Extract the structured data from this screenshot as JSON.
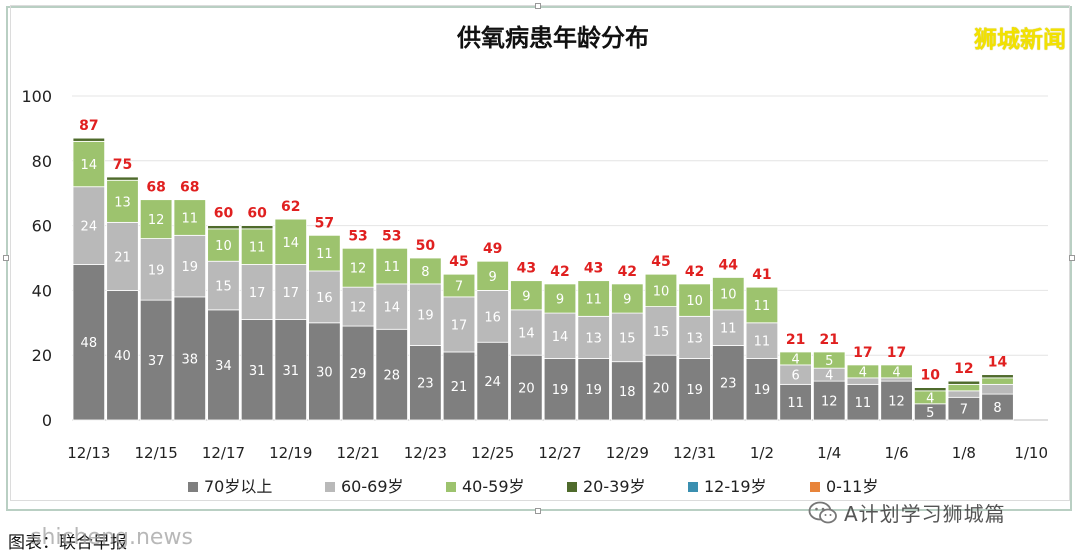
{
  "chart_data": {
    "type": "bar",
    "stacked": true,
    "title": "供氧病患年龄分布",
    "categories": [
      "12/13",
      "12/14",
      "12/15",
      "12/16",
      "12/17",
      "12/18",
      "12/19",
      "12/20",
      "12/21",
      "12/22",
      "12/23",
      "12/24",
      "12/25",
      "12/26",
      "12/27",
      "12/28",
      "12/29",
      "12/30",
      "12/31",
      "1/1",
      "1/2",
      "1/3",
      "1/4",
      "1/5",
      "1/6",
      "1/7",
      "1/8",
      "1/9",
      "1/10"
    ],
    "x_tick_labels": [
      "12/13",
      "12/15",
      "12/17",
      "12/19",
      "12/21",
      "12/23",
      "12/25",
      "12/27",
      "12/29",
      "12/31",
      "1/2",
      "1/4",
      "1/6",
      "1/8",
      "1/10"
    ],
    "ylim": [
      0,
      100
    ],
    "yticks": [
      0,
      20,
      40,
      60,
      80,
      100
    ],
    "grid": true,
    "legend_position": "bottom",
    "series": [
      {
        "name": "70岁以上",
        "color": "#7f7f7f",
        "values": [
          48,
          40,
          37,
          38,
          34,
          31,
          31,
          30,
          29,
          28,
          23,
          21,
          24,
          20,
          19,
          19,
          18,
          20,
          19,
          23,
          19,
          11,
          12,
          11,
          12,
          5,
          7,
          8,
          null
        ]
      },
      {
        "name": "60-69岁",
        "color": "#b9b9b9",
        "values": [
          24,
          21,
          19,
          19,
          15,
          17,
          17,
          16,
          12,
          14,
          19,
          17,
          16,
          14,
          14,
          13,
          15,
          15,
          13,
          11,
          11,
          6,
          4,
          2,
          1,
          0,
          2,
          3,
          null
        ]
      },
      {
        "name": "40-59岁",
        "color": "#9dc36e",
        "values": [
          14,
          13,
          12,
          11,
          10,
          11,
          14,
          11,
          12,
          11,
          8,
          7,
          9,
          9,
          9,
          11,
          9,
          10,
          10,
          10,
          11,
          4,
          5,
          4,
          4,
          4,
          2,
          2,
          null
        ]
      },
      {
        "name": "20-39岁",
        "color": "#4f6b2c",
        "values": [
          1,
          1,
          0,
          0,
          1,
          1,
          0,
          0,
          0,
          0,
          0,
          0,
          0,
          0,
          0,
          0,
          0,
          0,
          0,
          0,
          0,
          0,
          0,
          0,
          0,
          1,
          1,
          1,
          null
        ]
      },
      {
        "name": "12-19岁",
        "color": "#3a8fb0",
        "values": [
          0,
          0,
          0,
          0,
          0,
          0,
          0,
          0,
          0,
          0,
          0,
          0,
          0,
          0,
          0,
          0,
          0,
          0,
          0,
          0,
          0,
          0,
          0,
          0,
          0,
          0,
          0,
          0,
          null
        ]
      },
      {
        "name": "0-11岁",
        "color": "#e8843a",
        "values": [
          0,
          0,
          0,
          0,
          0,
          0,
          0,
          0,
          0,
          0,
          0,
          0,
          0,
          0,
          0,
          0,
          0,
          0,
          0,
          0,
          0,
          0,
          0,
          0,
          0,
          0,
          0,
          0,
          null
        ]
      }
    ],
    "totals": [
      87,
      75,
      68,
      68,
      60,
      60,
      62,
      57,
      53,
      53,
      50,
      45,
      49,
      43,
      42,
      43,
      42,
      45,
      42,
      44,
      41,
      21,
      21,
      17,
      17,
      10,
      12,
      14,
      null
    ],
    "total_label_color": "#e02020"
  },
  "watermark": "狮城新闻",
  "wechat_text": "A计划学习狮城篇",
  "caption_source": "图表：联合早报",
  "caption_site": "shicheng.news"
}
